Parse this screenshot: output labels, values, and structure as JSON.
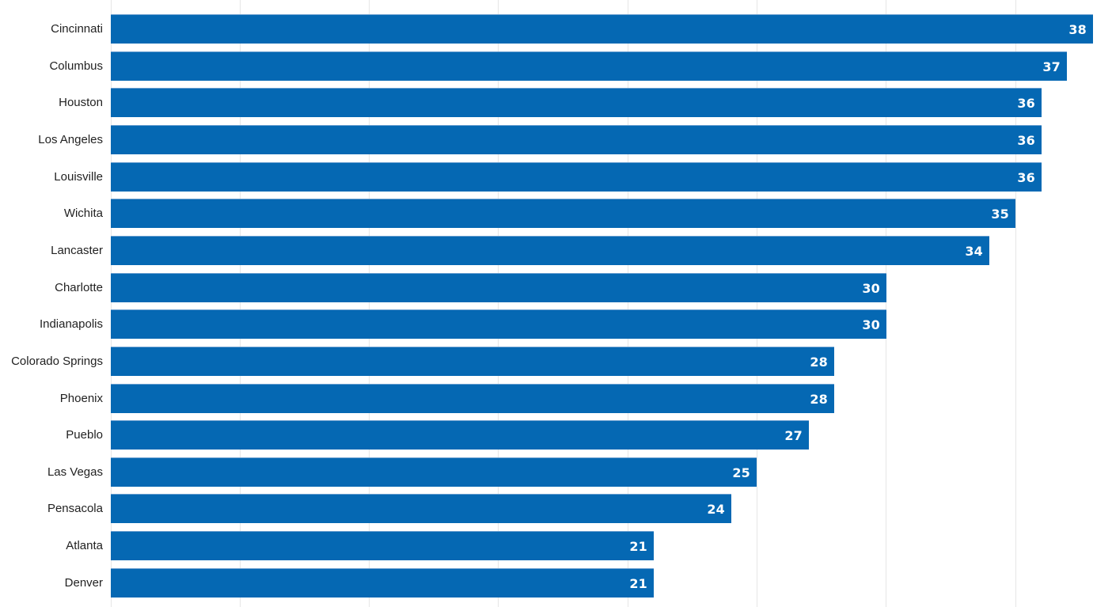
{
  "chart_data": {
    "type": "bar",
    "orientation": "horizontal",
    "title": "",
    "xlabel": "",
    "ylabel": "",
    "xlim": [
      0,
      38
    ],
    "grid": true,
    "grid_step": 5,
    "bar_color": "#0568b3",
    "categories": [
      "Cincinnati",
      "Columbus",
      "Houston",
      "Los Angeles",
      "Louisville",
      "Wichita",
      "Lancaster",
      "Charlotte",
      "Indianapolis",
      "Colorado Springs",
      "Phoenix",
      "Pueblo",
      "Las Vegas",
      "Pensacola",
      "Atlanta",
      "Denver"
    ],
    "values": [
      38,
      37,
      36,
      36,
      36,
      35,
      34,
      30,
      30,
      28,
      28,
      27,
      25,
      24,
      21,
      21
    ]
  },
  "rows": [
    {
      "label": "Cincinnati",
      "value": "38"
    },
    {
      "label": "Columbus",
      "value": "37"
    },
    {
      "label": "Houston",
      "value": "36"
    },
    {
      "label": "Los Angeles",
      "value": "36"
    },
    {
      "label": "Louisville",
      "value": "36"
    },
    {
      "label": "Wichita",
      "value": "35"
    },
    {
      "label": "Lancaster",
      "value": "34"
    },
    {
      "label": "Charlotte",
      "value": "30"
    },
    {
      "label": "Indianapolis",
      "value": "30"
    },
    {
      "label": "Colorado Springs",
      "value": "28"
    },
    {
      "label": "Phoenix",
      "value": "28"
    },
    {
      "label": "Pueblo",
      "value": "27"
    },
    {
      "label": "Las Vegas",
      "value": "25"
    },
    {
      "label": "Pensacola",
      "value": "24"
    },
    {
      "label": "Atlanta",
      "value": "21"
    },
    {
      "label": "Denver",
      "value": "21"
    }
  ]
}
